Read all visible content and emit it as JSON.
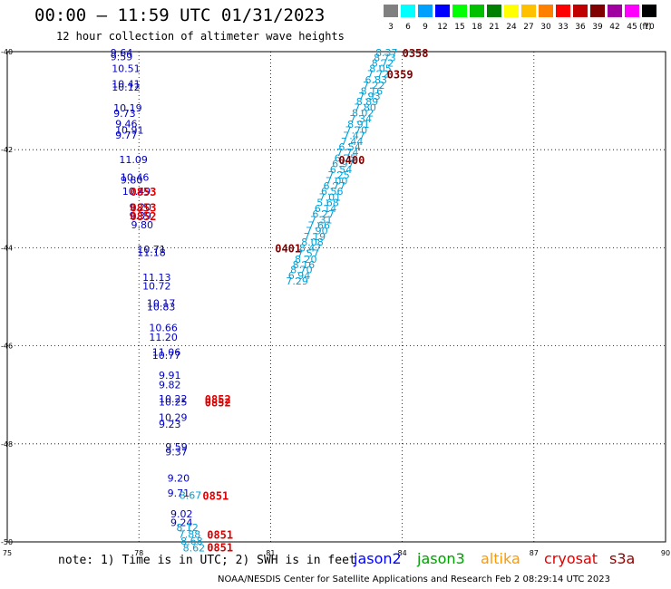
{
  "header": {
    "title": "00:00 – 11:59 UTC 01/31/2023",
    "subtitle": "12 hour collection of altimeter wave heights"
  },
  "color_scale": {
    "labels": [
      "3",
      "6",
      "9",
      "12",
      "15",
      "18",
      "21",
      "24",
      "27",
      "30",
      "33",
      "36",
      "39",
      "42",
      "45",
      "70"
    ],
    "colors": [
      "#808080",
      "#00ffff",
      "#00a0ff",
      "#0000ff",
      "#00ff00",
      "#00c000",
      "#008000",
      "#ffff00",
      "#ffc000",
      "#ff8000",
      "#ff0000",
      "#c00000",
      "#800000",
      "#a000a0",
      "#ff00ff",
      "#000000"
    ],
    "unit": "(ft)"
  },
  "axes": {
    "x_ticks": [
      "75",
      "78",
      "81",
      "84",
      "87",
      "90"
    ],
    "y_ticks": [
      "-40",
      "-42",
      "-44",
      "-46",
      "-48",
      "-50"
    ],
    "xlim": [
      75,
      90
    ],
    "ylim": [
      -50,
      -40
    ]
  },
  "footer": {
    "note": "note:  1) Time is in UTC;  2) SWH is in feet",
    "satellites": [
      {
        "name": "jason2",
        "color": "#0000ff"
      },
      {
        "name": "jason3",
        "color": "#00a000"
      },
      {
        "name": "altika",
        "color": "#ff9900"
      },
      {
        "name": "cryosat",
        "color": "#e00000"
      },
      {
        "name": "s3a",
        "color": "#900000"
      }
    ],
    "credit": "NOAA/NESDIS Center for Satellite Applications and Research    Feb  2 08:29:14 UTC 2023"
  },
  "chart_data": {
    "type": "scatter",
    "tracks": [
      {
        "color": "#0000c0",
        "points": [
          {
            "lon": 77.35,
            "lat": -40.02,
            "v": "9.64"
          },
          {
            "lon": 77.35,
            "lat": -40.1,
            "v": "9.59"
          },
          {
            "lon": 77.38,
            "lat": -40.34,
            "v": "10.51"
          },
          {
            "lon": 77.38,
            "lat": -40.66,
            "v": "10.41"
          },
          {
            "lon": 77.38,
            "lat": -40.72,
            "v": "10.12"
          },
          {
            "lon": 77.42,
            "lat": -41.15,
            "v": "10.19"
          },
          {
            "lon": 77.42,
            "lat": -41.26,
            "v": "9.73"
          },
          {
            "lon": 77.46,
            "lat": -41.47,
            "v": "9.46"
          },
          {
            "lon": 77.46,
            "lat": -41.6,
            "v": "10.91"
          },
          {
            "lon": 77.46,
            "lat": -41.7,
            "v": "9.77"
          },
          {
            "lon": 77.55,
            "lat": -42.2,
            "v": "11.09"
          },
          {
            "lon": 77.58,
            "lat": -42.56,
            "v": "10.46"
          },
          {
            "lon": 77.58,
            "lat": -42.62,
            "v": "9.80"
          },
          {
            "lon": 77.62,
            "lat": -42.85,
            "v": "10.49"
          },
          {
            "lon": 77.78,
            "lat": -43.17,
            "v": "9.20"
          },
          {
            "lon": 77.78,
            "lat": -43.35,
            "v": "9.39"
          },
          {
            "lon": 77.82,
            "lat": -43.53,
            "v": "9.80"
          },
          {
            "lon": 77.96,
            "lat": -44.03,
            "v": "10.71"
          },
          {
            "lon": 77.96,
            "lat": -44.09,
            "v": "11.18"
          },
          {
            "lon": 78.08,
            "lat": -44.6,
            "v": "11.13"
          },
          {
            "lon": 78.08,
            "lat": -44.78,
            "v": "10.72"
          },
          {
            "lon": 78.18,
            "lat": -45.13,
            "v": "10.17"
          },
          {
            "lon": 78.18,
            "lat": -45.2,
            "v": "10.83"
          },
          {
            "lon": 78.23,
            "lat": -45.63,
            "v": "10.66"
          },
          {
            "lon": 78.23,
            "lat": -45.82,
            "v": "11.20"
          },
          {
            "lon": 78.3,
            "lat": -46.13,
            "v": "11.06"
          },
          {
            "lon": 78.3,
            "lat": -46.19,
            "v": "10.77"
          },
          {
            "lon": 78.45,
            "lat": -46.6,
            "v": "9.91"
          },
          {
            "lon": 78.45,
            "lat": -46.79,
            "v": "9.82"
          },
          {
            "lon": 78.45,
            "lat": -47.08,
            "v": "10.22"
          },
          {
            "lon": 78.45,
            "lat": -47.14,
            "v": "10.25"
          },
          {
            "lon": 78.45,
            "lat": -47.46,
            "v": "10.29"
          },
          {
            "lon": 78.45,
            "lat": -47.6,
            "v": "9.23"
          },
          {
            "lon": 78.6,
            "lat": -48.06,
            "v": "9.59"
          },
          {
            "lon": 78.6,
            "lat": -48.16,
            "v": "9.37"
          },
          {
            "lon": 78.65,
            "lat": -48.7,
            "v": "9.20"
          },
          {
            "lon": 78.65,
            "lat": -49.0,
            "v": "9.71"
          },
          {
            "lon": 78.72,
            "lat": -49.43,
            "v": "9.02"
          },
          {
            "lon": 78.72,
            "lat": -49.6,
            "v": "9.24"
          }
        ]
      },
      {
        "color": "#00a0d8",
        "points": [
          {
            "lon": 83.39,
            "lat": -40.02,
            "v": "8.37"
          },
          {
            "lon": 83.35,
            "lat": -40.12,
            "v": "8.73"
          },
          {
            "lon": 83.3,
            "lat": -40.23,
            "v": "8.72"
          },
          {
            "lon": 83.25,
            "lat": -40.34,
            "v": "8.05"
          },
          {
            "lon": 83.2,
            "lat": -40.45,
            "v": "7.72"
          },
          {
            "lon": 83.15,
            "lat": -40.57,
            "v": "6.83"
          },
          {
            "lon": 83.1,
            "lat": -40.68,
            "v": "7.22"
          },
          {
            "lon": 83.05,
            "lat": -40.8,
            "v": "8.16"
          },
          {
            "lon": 83.0,
            "lat": -40.91,
            "v": "7.93"
          },
          {
            "lon": 82.95,
            "lat": -41.02,
            "v": "8.89"
          },
          {
            "lon": 82.9,
            "lat": -41.14,
            "v": "7.80"
          },
          {
            "lon": 82.85,
            "lat": -41.25,
            "v": "8.02"
          },
          {
            "lon": 82.8,
            "lat": -41.37,
            "v": "7.34"
          },
          {
            "lon": 82.75,
            "lat": -41.48,
            "v": "8.91"
          },
          {
            "lon": 82.7,
            "lat": -41.6,
            "v": "7.70"
          },
          {
            "lon": 82.65,
            "lat": -41.71,
            "v": "7.47"
          },
          {
            "lon": 82.6,
            "lat": -41.83,
            "v": "7.44"
          },
          {
            "lon": 82.55,
            "lat": -41.94,
            "v": "6.54"
          },
          {
            "lon": 82.5,
            "lat": -42.05,
            "v": "7.74"
          },
          {
            "lon": 82.45,
            "lat": -42.17,
            "v": "6.75"
          },
          {
            "lon": 82.4,
            "lat": -42.28,
            "v": "6.97"
          },
          {
            "lon": 82.35,
            "lat": -42.4,
            "v": "6.54"
          },
          {
            "lon": 82.3,
            "lat": -42.51,
            "v": "7.25"
          },
          {
            "lon": 82.25,
            "lat": -42.63,
            "v": "7.00"
          },
          {
            "lon": 82.2,
            "lat": -42.74,
            "v": "6.77"
          },
          {
            "lon": 82.15,
            "lat": -42.85,
            "v": "6.56"
          },
          {
            "lon": 82.1,
            "lat": -42.97,
            "v": "7.01"
          },
          {
            "lon": 82.05,
            "lat": -43.08,
            "v": "5.68"
          },
          {
            "lon": 82.0,
            "lat": -43.2,
            "v": "6.14"
          },
          {
            "lon": 81.95,
            "lat": -43.31,
            "v": "6.27"
          },
          {
            "lon": 81.9,
            "lat": -43.43,
            "v": "7.31"
          },
          {
            "lon": 81.85,
            "lat": -43.54,
            "v": "7.66"
          },
          {
            "lon": 81.8,
            "lat": -43.65,
            "v": "7.90"
          },
          {
            "lon": 81.75,
            "lat": -43.77,
            "v": "7.19"
          },
          {
            "lon": 81.7,
            "lat": -43.88,
            "v": "8.08"
          },
          {
            "lon": 81.65,
            "lat": -44.0,
            "v": "8.47"
          },
          {
            "lon": 81.6,
            "lat": -44.11,
            "v": "7.57"
          },
          {
            "lon": 81.55,
            "lat": -44.23,
            "v": "8.20"
          },
          {
            "lon": 81.5,
            "lat": -44.34,
            "v": "8.16"
          },
          {
            "lon": 81.45,
            "lat": -44.45,
            "v": "8.70"
          },
          {
            "lon": 81.4,
            "lat": -44.57,
            "v": "6.94"
          },
          {
            "lon": 81.35,
            "lat": -44.68,
            "v": "7.29"
          },
          {
            "lon": 78.92,
            "lat": -49.05,
            "v": "8.67"
          },
          {
            "lon": 78.85,
            "lat": -49.7,
            "v": "8.12"
          },
          {
            "lon": 78.9,
            "lat": -49.84,
            "v": "7.88"
          },
          {
            "lon": 78.95,
            "lat": -49.98,
            "v": "8.68"
          },
          {
            "lon": 79.0,
            "lat": -50.12,
            "v": "8.62"
          }
        ]
      }
    ],
    "time_labels": [
      {
        "lon": 84.0,
        "lat": -40.02,
        "t": "0358",
        "color": "#800000"
      },
      {
        "lon": 83.65,
        "lat": -40.45,
        "t": "0359",
        "color": "#800000"
      },
      {
        "lon": 82.55,
        "lat": -42.2,
        "t": "0400",
        "color": "#800000"
      },
      {
        "lon": 81.1,
        "lat": -44.0,
        "t": "0401",
        "color": "#800000"
      },
      {
        "lon": 77.8,
        "lat": -42.85,
        "t": "0853",
        "color": "#e00000"
      },
      {
        "lon": 77.8,
        "lat": -43.17,
        "t": "0853",
        "color": "#e00000"
      },
      {
        "lon": 77.8,
        "lat": -43.35,
        "t": "0852",
        "color": "#e00000"
      },
      {
        "lon": 79.5,
        "lat": -47.08,
        "t": "0852",
        "color": "#e00000"
      },
      {
        "lon": 79.5,
        "lat": -47.14,
        "t": "0852",
        "color": "#e00000"
      },
      {
        "lon": 79.45,
        "lat": -49.05,
        "t": "0851",
        "color": "#e00000"
      },
      {
        "lon": 79.55,
        "lat": -49.84,
        "t": "0851",
        "color": "#e00000"
      },
      {
        "lon": 79.55,
        "lat": -50.1,
        "t": "0851",
        "color": "#e00000"
      }
    ]
  }
}
